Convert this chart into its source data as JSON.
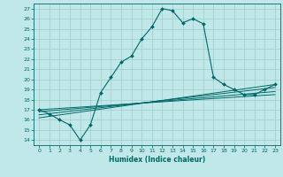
{
  "xlabel": "Humidex (Indice chaleur)",
  "bg_color": "#c0e8e8",
  "grid_color": "#a0cccc",
  "line_color": "#006868",
  "xlim": [
    -0.5,
    23.5
  ],
  "ylim": [
    13.5,
    27.5
  ],
  "xticks": [
    0,
    1,
    2,
    3,
    4,
    5,
    6,
    7,
    8,
    9,
    10,
    11,
    12,
    13,
    14,
    15,
    16,
    17,
    18,
    19,
    20,
    21,
    22,
    23
  ],
  "yticks": [
    14,
    15,
    16,
    17,
    18,
    19,
    20,
    21,
    22,
    23,
    24,
    25,
    26,
    27
  ],
  "main_x": [
    0,
    1,
    2,
    3,
    4,
    5,
    6,
    7,
    8,
    9,
    10,
    11,
    12,
    13,
    14,
    15,
    16,
    17,
    18,
    19,
    20,
    21,
    22,
    23
  ],
  "main_y": [
    17,
    16.6,
    16.0,
    15.5,
    14.0,
    15.5,
    18.7,
    20.2,
    21.7,
    22.3,
    24.0,
    25.2,
    27.0,
    26.8,
    25.6,
    26.0,
    25.5,
    20.2,
    19.5,
    19.0,
    18.5,
    18.5,
    19.0,
    19.5
  ],
  "ref_lines": [
    [
      [
        0,
        23
      ],
      [
        17.0,
        18.5
      ]
    ],
    [
      [
        0,
        23
      ],
      [
        16.8,
        18.8
      ]
    ],
    [
      [
        0,
        23
      ],
      [
        16.5,
        19.2
      ]
    ],
    [
      [
        0,
        23
      ],
      [
        16.2,
        19.5
      ]
    ]
  ]
}
